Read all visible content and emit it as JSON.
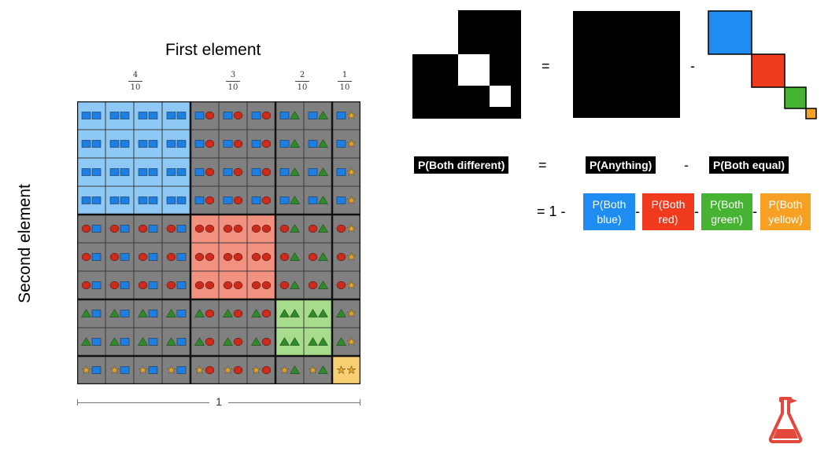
{
  "diagram": {
    "x_axis_title": "First element",
    "y_axis_title": "Second element",
    "fractions": [
      {
        "num": "4",
        "den": "10"
      },
      {
        "num": "3",
        "den": "10"
      },
      {
        "num": "2",
        "den": "10"
      },
      {
        "num": "1",
        "den": "10"
      }
    ],
    "total_label": "1",
    "category_counts": [
      4,
      3,
      2,
      1
    ],
    "categories": [
      "blue",
      "red",
      "green",
      "yellow"
    ],
    "colors": {
      "blue": "#1e7fe3",
      "red": "#cc2a1a",
      "green": "#2f8a2a",
      "yellow": "#e0a52a",
      "cell_gray": "#808080",
      "blue_bg": "#8ec8f5",
      "red_bg": "#f2917f",
      "green_bg": "#a7dc8c",
      "yellow_bg": "#f9cf74"
    }
  },
  "equation": {
    "equals": "=",
    "minus": "-",
    "p_both_different": "P(Both different)",
    "p_anything": "P(Anything)",
    "p_both_equal": "P(Both equal)",
    "one_minus": "= 1 -",
    "boxes": [
      {
        "line1": "P(Both",
        "line2": "blue)",
        "color": "#1e8cf0"
      },
      {
        "line1": "P(Both",
        "line2": "red)",
        "color": "#ef3a1e"
      },
      {
        "line1": "P(Both",
        "line2": "green)",
        "color": "#46b333"
      },
      {
        "line1": "P(Both",
        "line2": "yellow)",
        "color": "#f6a124"
      }
    ]
  },
  "logo_icon": "flask-icon"
}
